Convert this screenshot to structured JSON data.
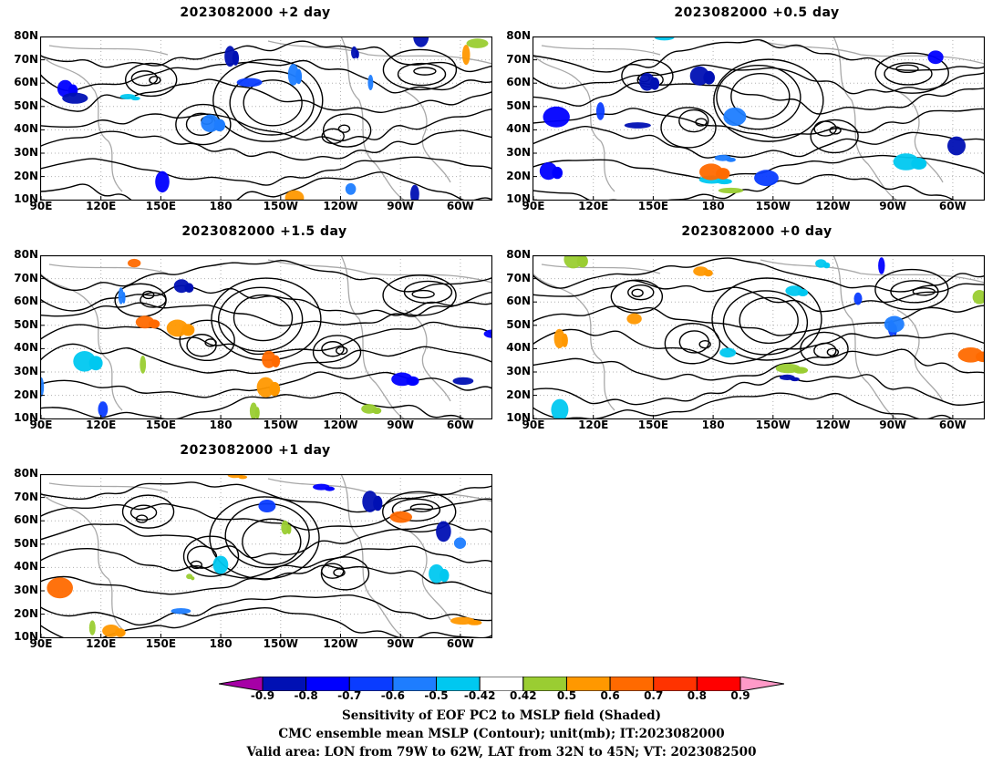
{
  "panels": [
    {
      "title": "2023082000 +2 day"
    },
    {
      "title": "2023082000 +0.5 day"
    },
    {
      "title": "2023082000 +1.5 day"
    },
    {
      "title": "2023082000 +0 day"
    },
    {
      "title": "2023082000 +1 day"
    }
  ],
  "lat_labels": [
    "80N",
    "70N",
    "60N",
    "50N",
    "40N",
    "30N",
    "20N",
    "10N"
  ],
  "lon_labels": [
    "90E",
    "120E",
    "150E",
    "180",
    "150W",
    "120W",
    "90W",
    "60W"
  ],
  "colorbar": {
    "labels": [
      "-0.9",
      "-0.8",
      "-0.7",
      "-0.6",
      "-0.5",
      "-0.42",
      "0.42",
      "0.5",
      "0.6",
      "0.7",
      "0.8",
      "0.9"
    ],
    "colors": [
      "#a600a6",
      "#0010b4",
      "#0000ff",
      "#0a3cff",
      "#1e7dff",
      "#00c8f0",
      "#ffffff",
      "#9acd32",
      "#ff9800",
      "#ff6a00",
      "#ff3300",
      "#ff0000",
      "#ff9ac8"
    ]
  },
  "captions": [
    "Sensitivity of EOF PC2 to MSLP field (Shaded)",
    "CMC ensemble mean MSLP (Contour); unit(mb); IT:2023082000",
    "Valid area: LON from 79W to 62W, LAT from 32N to 45N; VT: 2023082500"
  ]
}
